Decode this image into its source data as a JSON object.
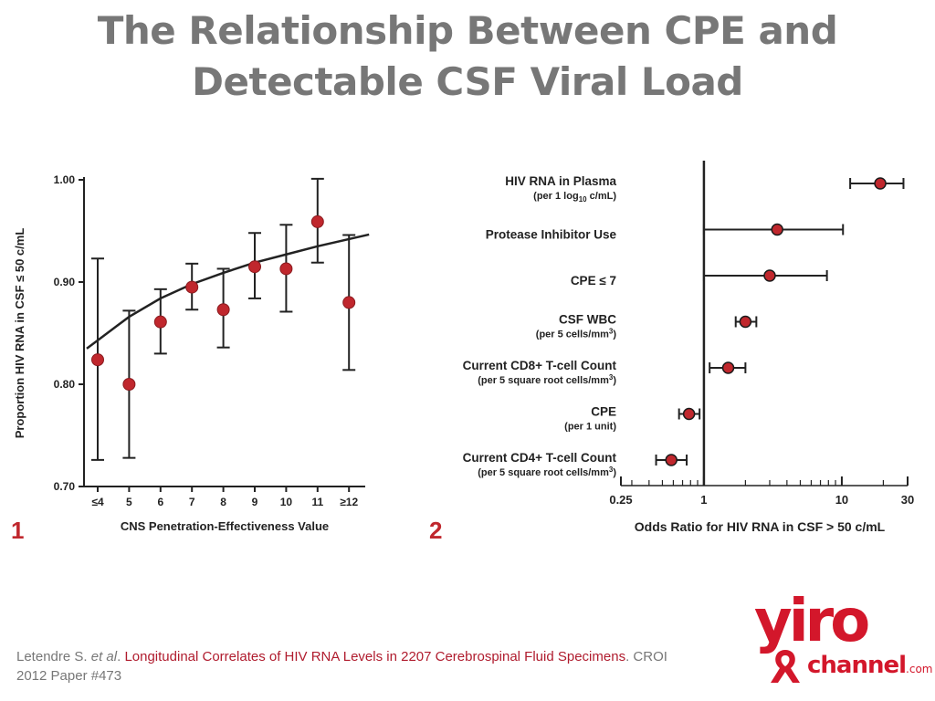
{
  "slide": {
    "title_line1": "The Relationship Between CPE and",
    "title_line2": "Detectable CSF Viral Load"
  },
  "panel_labels": [
    "1",
    "2"
  ],
  "citation": {
    "authors": "Letendre S.",
    "et_al": "et al",
    "period": ".",
    "title": "Longitudinal Correlates of HIV RNA Levels in 2207 Cerebrospinal Fluid Specimens",
    "rest": ". CROI 2012 Paper #473"
  },
  "logo": {
    "word1": "yiro",
    "word2": "channel",
    "suffix": ".com",
    "color": "#d3172b"
  },
  "colors": {
    "marker": "#c0272d",
    "line": "#222222",
    "title": "#777777"
  },
  "chart_data": [
    {
      "type": "scatter",
      "title": "",
      "xlabel": "CNS Penetration-Effectiveness Value",
      "ylabel": "Proportion HIV RNA in CSF ≤ 50 c/mL",
      "categories": [
        "≤4",
        "5",
        "6",
        "7",
        "8",
        "9",
        "10",
        "11",
        "≥12"
      ],
      "values": [
        0.824,
        0.8,
        0.861,
        0.895,
        0.873,
        0.915,
        0.913,
        0.959,
        0.88
      ],
      "ci_low": [
        0.726,
        0.728,
        0.83,
        0.873,
        0.836,
        0.884,
        0.871,
        0.919,
        0.814
      ],
      "ci_high": [
        0.923,
        0.872,
        0.893,
        0.918,
        0.913,
        0.948,
        0.956,
        1.001,
        0.946
      ],
      "trend_line": [
        0.843,
        0.866,
        0.884,
        0.898,
        0.909,
        0.919,
        0.927,
        0.935,
        0.942
      ],
      "ylim": [
        0.7,
        1.0
      ],
      "yticks": [
        "0.70",
        "0.80",
        "0.90",
        "1.00"
      ],
      "grid": false,
      "legend": "none"
    },
    {
      "type": "scatter",
      "title": "",
      "xlabel": "Odds Ratio for HIV RNA in CSF > 50 c/mL",
      "xscale": "log",
      "xlim": [
        0.25,
        30
      ],
      "xticks": [
        "0.25",
        "1",
        "10",
        "30"
      ],
      "reference_line": 1,
      "rows": [
        {
          "label": "HIV RNA in Plasma",
          "sublabel": "(per 1 log",
          "sub": "10",
          "sublabel_end": " c/mL)",
          "or": 19,
          "low": 11.5,
          "high": 28
        },
        {
          "label": "Protease Inhibitor Use",
          "sublabel": "",
          "sub": "",
          "sublabel_end": "",
          "or": 3.4,
          "low": 1.0,
          "high": 10.2
        },
        {
          "label": "CPE ≤ 7",
          "sublabel": "",
          "sub": "",
          "sublabel_end": "",
          "or": 3.0,
          "low": 1.0,
          "high": 7.8
        },
        {
          "label": "CSF WBC",
          "sublabel": "(per 5 cells/mm",
          "sup": "3",
          "sublabel_end": ")",
          "or": 2.0,
          "low": 1.7,
          "high": 2.4
        },
        {
          "label": "Current CD8+ T-cell Count",
          "sublabel": "(per 5 square root cells/mm",
          "sup": "3",
          "sublabel_end": ")",
          "or": 1.5,
          "low": 1.1,
          "high": 2.0
        },
        {
          "label": "CPE",
          "sublabel": "(per 1 unit)",
          "sub": "",
          "sublabel_end": "",
          "or": 0.78,
          "low": 0.66,
          "high": 0.93
        },
        {
          "label": "Current CD4+ T-cell Count",
          "sublabel": "(per 5 square root cells/mm",
          "sup": "3",
          "sublabel_end": ")",
          "or": 0.58,
          "low": 0.45,
          "high": 0.75
        }
      ],
      "grid": false,
      "legend": "none"
    }
  ]
}
